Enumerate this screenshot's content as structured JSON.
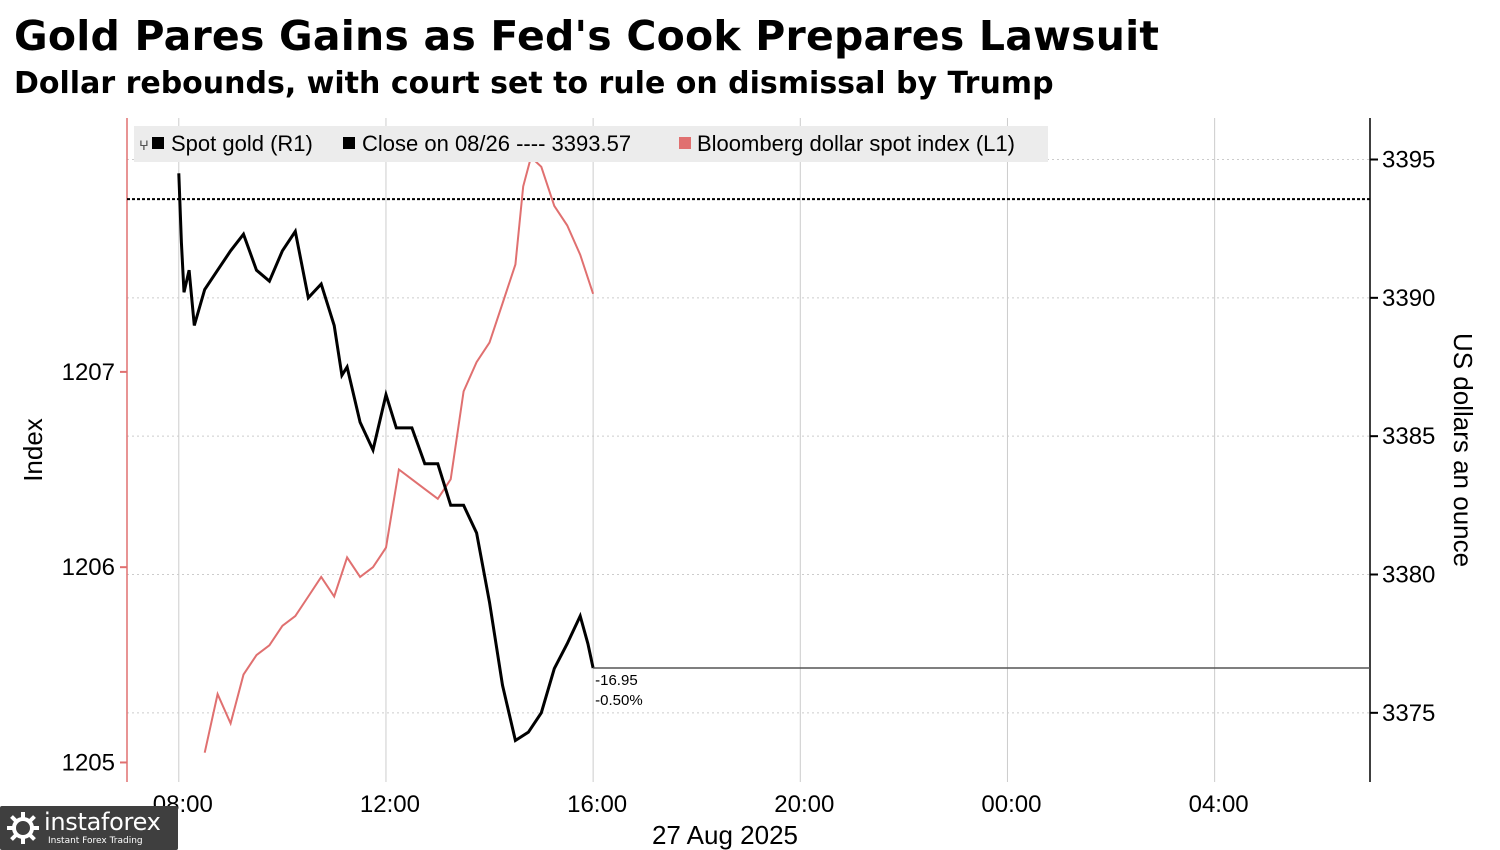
{
  "title": "Gold Pares Gains as Fed's Cook Prepares Lawsuit",
  "subtitle": "Dollar rebounds, with court set to rule on dismissal by Trump",
  "watermark": {
    "name": "instaforex",
    "tagline": "Instant Forex Trading"
  },
  "colors": {
    "gold": "#000000",
    "dollar": "#e07070",
    "grid": "#cccccc",
    "legend_bg": "#ececec"
  },
  "chart_data": {
    "type": "line",
    "xlabel": "27 Aug 2025",
    "x_tick_labels": [
      "08:00",
      "12:00",
      "16:00",
      "20:00",
      "00:00",
      "04:00"
    ],
    "x_tick_hours": [
      8,
      12,
      16,
      20,
      24,
      28
    ],
    "xlim_hours": [
      7,
      31
    ],
    "ylabel_left": "Index",
    "ylabel_right": "US dollars an ounce",
    "ylim_left": [
      1204.9,
      1208.3
    ],
    "ylim_right": [
      3372.5,
      3396.5
    ],
    "yticks_left": [
      1205,
      1206,
      1207
    ],
    "yticks_right": [
      3375,
      3380,
      3385,
      3390,
      3395
    ],
    "legend_location": "top-left",
    "legend": [
      "Spot gold (R1)",
      "Close on 08/26 ---- 3393.57",
      "Bloomberg dollar spot index (L1)"
    ],
    "reference_line": {
      "label": "Close on 08/26",
      "value": 3393.57
    },
    "annotation": {
      "change": "-16.95",
      "pct": "-0.50%"
    },
    "grid": true,
    "series": [
      {
        "name": "Spot gold (R1)",
        "axis": "right",
        "color": "#000000",
        "x": [
          8.0,
          8.05,
          8.1,
          8.2,
          8.3,
          8.5,
          8.75,
          9.0,
          9.25,
          9.5,
          9.75,
          10.0,
          10.25,
          10.5,
          10.75,
          11.0,
          11.15,
          11.25,
          11.5,
          11.75,
          12.0,
          12.2,
          12.5,
          12.75,
          13.0,
          13.25,
          13.5,
          13.75,
          14.0,
          14.25,
          14.5,
          14.75,
          15.0,
          15.25,
          15.5,
          15.75,
          15.9,
          16.0
        ],
        "values": [
          3394.5,
          3392.0,
          3390.2,
          3391.0,
          3389.0,
          3390.3,
          3391.0,
          3391.7,
          3392.3,
          3391.0,
          3390.6,
          3391.7,
          3392.4,
          3390.0,
          3390.5,
          3389.0,
          3387.2,
          3387.5,
          3385.5,
          3384.5,
          3386.5,
          3385.3,
          3385.3,
          3384.0,
          3384.0,
          3382.5,
          3382.5,
          3381.5,
          3379.0,
          3376.0,
          3374.0,
          3374.3,
          3375.0,
          3376.6,
          3377.5,
          3378.5,
          3377.5,
          3376.62
        ]
      },
      {
        "name": "Bloomberg dollar spot index (L1)",
        "axis": "left",
        "color": "#e07070",
        "x": [
          8.5,
          8.75,
          9.0,
          9.25,
          9.5,
          9.75,
          10.0,
          10.25,
          10.5,
          10.75,
          11.0,
          11.25,
          11.5,
          11.75,
          12.0,
          12.25,
          12.5,
          12.75,
          13.0,
          13.25,
          13.5,
          13.75,
          14.0,
          14.25,
          14.5,
          14.65,
          14.8,
          15.0,
          15.25,
          15.5,
          15.75,
          16.0
        ],
        "values": [
          1205.05,
          1205.35,
          1205.2,
          1205.45,
          1205.55,
          1205.6,
          1205.7,
          1205.75,
          1205.85,
          1205.95,
          1205.85,
          1206.05,
          1205.95,
          1206.0,
          1206.1,
          1206.5,
          1206.45,
          1206.4,
          1206.35,
          1206.45,
          1206.9,
          1207.05,
          1207.15,
          1207.35,
          1207.55,
          1207.95,
          1208.1,
          1208.05,
          1207.85,
          1207.75,
          1207.6,
          1207.4
        ]
      }
    ]
  }
}
